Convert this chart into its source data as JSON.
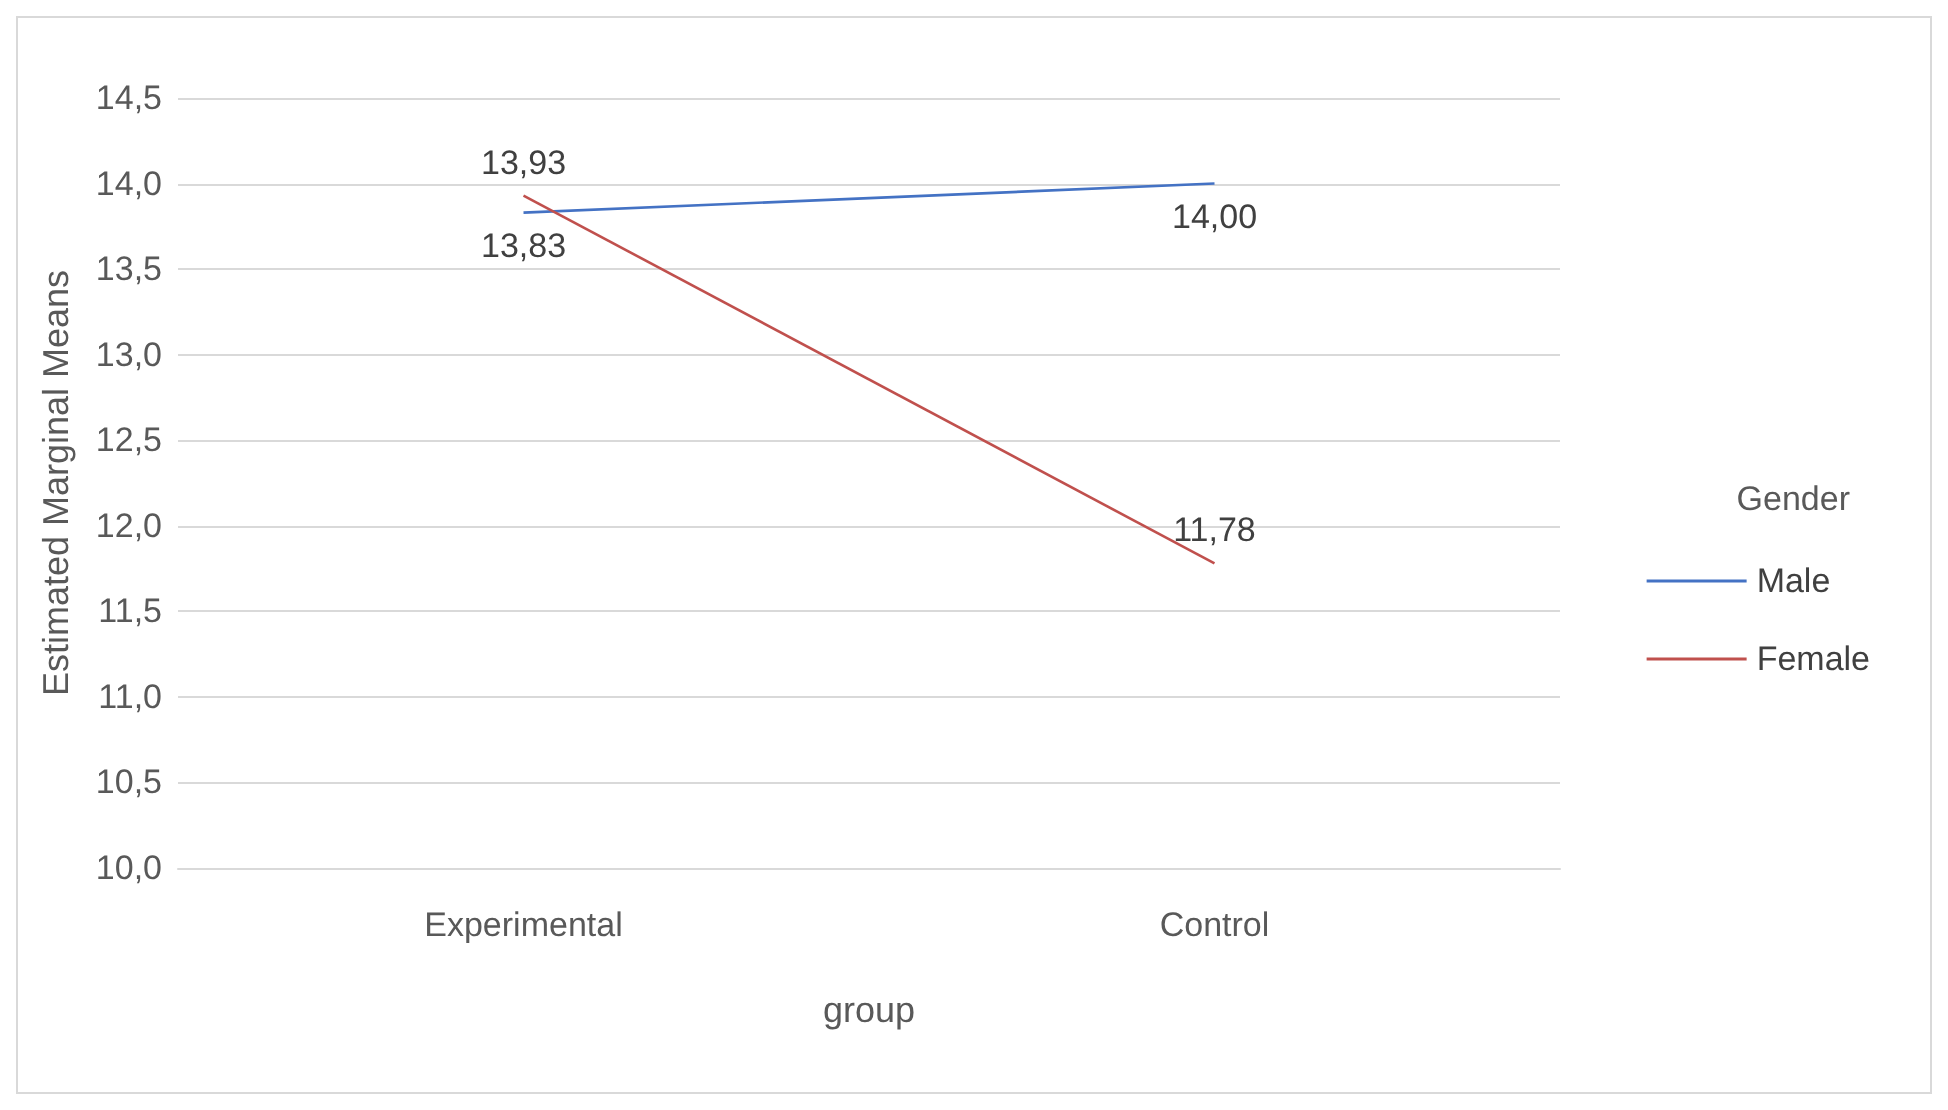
{
  "chart_data": {
    "type": "line",
    "xlabel": "group",
    "ylabel": "Estimated Marginal Means",
    "legend_title": "Gender",
    "categories": [
      "Experimental",
      "Control"
    ],
    "series": [
      {
        "name": "Male",
        "color": "#4472c4",
        "values": [
          13.83,
          14.0
        ],
        "value_labels": [
          "13,83",
          "14,00"
        ]
      },
      {
        "name": "Female",
        "color": "#c0504d",
        "values": [
          13.93,
          11.78
        ],
        "value_labels": [
          "13,93",
          "11,78"
        ]
      }
    ],
    "ylim": [
      10,
      14.5
    ],
    "yticks": [
      {
        "value": 10,
        "label": "10,0"
      },
      {
        "value": 10.5,
        "label": "10,5"
      },
      {
        "value": 11,
        "label": "11,0"
      },
      {
        "value": 11.5,
        "label": "11,5"
      },
      {
        "value": 12,
        "label": "12,0"
      },
      {
        "value": 12.5,
        "label": "12,5"
      },
      {
        "value": 13,
        "label": "13,0"
      },
      {
        "value": 13.5,
        "label": "13,5"
      },
      {
        "value": 14,
        "label": "14,0"
      },
      {
        "value": 14.5,
        "label": "14,5"
      }
    ],
    "grid": "y",
    "legend": "right",
    "marker": "none"
  }
}
